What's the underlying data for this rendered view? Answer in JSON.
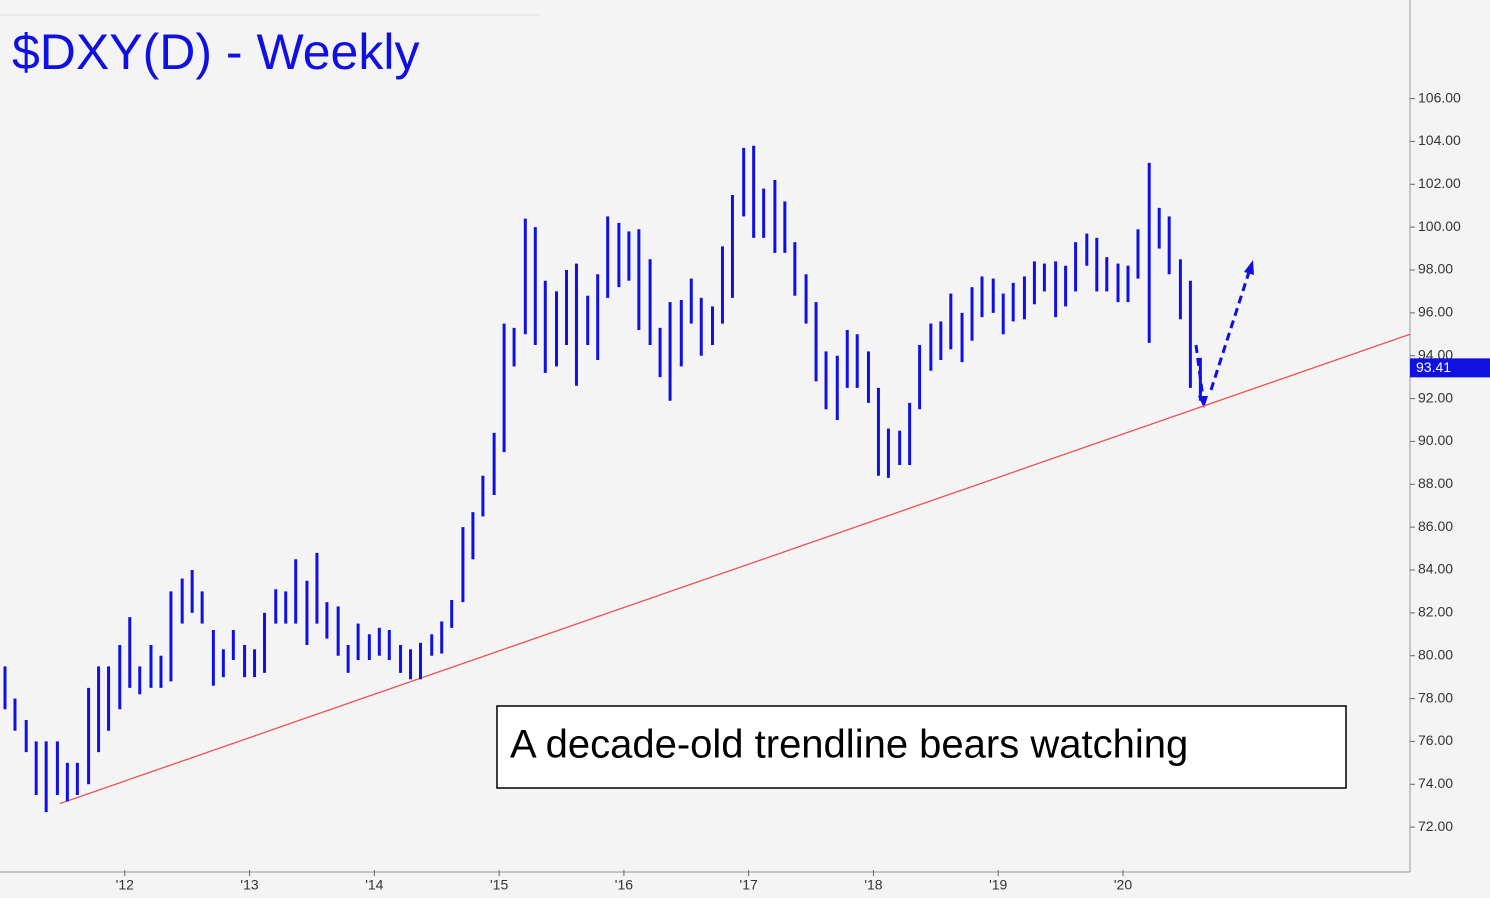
{
  "chart_data": {
    "type": "range-bar",
    "title": "$DXY(D) - Weekly",
    "annotation": "A decade-old trendline bears watching",
    "color": "#1010e0",
    "trendline_color": "#f05050",
    "last_value": 93.41,
    "x": [
      2011.04,
      2011.12,
      2011.21,
      2011.29,
      2011.37,
      2011.46,
      2011.54,
      2011.62,
      2011.71,
      2011.79,
      2011.87,
      2011.96,
      2012.04,
      2012.12,
      2012.21,
      2012.29,
      2012.37,
      2012.46,
      2012.54,
      2012.62,
      2012.71,
      2012.79,
      2012.87,
      2012.96,
      2013.04,
      2013.12,
      2013.21,
      2013.29,
      2013.37,
      2013.46,
      2013.54,
      2013.62,
      2013.71,
      2013.79,
      2013.87,
      2013.96,
      2014.04,
      2014.12,
      2014.21,
      2014.29,
      2014.37,
      2014.46,
      2014.54,
      2014.62,
      2014.71,
      2014.79,
      2014.87,
      2014.96,
      2015.04,
      2015.12,
      2015.21,
      2015.29,
      2015.37,
      2015.46,
      2015.54,
      2015.62,
      2015.71,
      2015.79,
      2015.87,
      2015.96,
      2016.04,
      2016.12,
      2016.21,
      2016.29,
      2016.37,
      2016.46,
      2016.54,
      2016.62,
      2016.71,
      2016.79,
      2016.87,
      2016.96,
      2017.04,
      2017.12,
      2017.21,
      2017.29,
      2017.37,
      2017.46,
      2017.54,
      2017.62,
      2017.71,
      2017.79,
      2017.87,
      2017.96,
      2018.04,
      2018.12,
      2018.21,
      2018.29,
      2018.37,
      2018.46,
      2018.54,
      2018.62,
      2018.71,
      2018.79,
      2018.87,
      2018.96,
      2019.04,
      2019.12,
      2019.21,
      2019.29,
      2019.37,
      2019.46,
      2019.54,
      2019.62,
      2019.71,
      2019.79,
      2019.87,
      2019.96,
      2020.04,
      2020.12,
      2020.21,
      2020.29,
      2020.37,
      2020.46,
      2020.54,
      2020.62
    ],
    "high": [
      79.5,
      78,
      77,
      76,
      76,
      76,
      75,
      75,
      78.5,
      79.5,
      79.5,
      80.5,
      81.8,
      79.5,
      80.5,
      80,
      83,
      83.6,
      84,
      83,
      81.2,
      80.3,
      81.2,
      80.5,
      80.3,
      82,
      83.1,
      83,
      84.5,
      83.5,
      84.8,
      82.5,
      82.3,
      80.5,
      81.5,
      81,
      81.3,
      81.2,
      80.5,
      80.3,
      80.6,
      81,
      81.6,
      82.6,
      86,
      86.7,
      88.4,
      90.4,
      95.5,
      95.3,
      100.4,
      100,
      97.5,
      97,
      98,
      98.3,
      96.8,
      97.8,
      100.5,
      100.2,
      99.8,
      99.9,
      98.5,
      95.3,
      96.5,
      96.6,
      97.6,
      96.7,
      96.3,
      99.1,
      101.5,
      103.7,
      103.8,
      101.8,
      102.2,
      101.2,
      99.3,
      97.8,
      96.5,
      94.2,
      94,
      95.2,
      95,
      94.2,
      92.5,
      90.6,
      90.5,
      91.8,
      94.5,
      95.5,
      95.6,
      96.9,
      96,
      97.2,
      97.7,
      97.6,
      96.9,
      97.4,
      97.7,
      98.4,
      98.3,
      98.4,
      98.2,
      99.3,
      99.7,
      99.5,
      98.6,
      98.3,
      98.2,
      99.9,
      103,
      100.9,
      100.5,
      98.5,
      97.5,
      93.9
    ],
    "low": [
      77.5,
      76.5,
      75.5,
      73.5,
      72.7,
      73.5,
      73.2,
      73.5,
      74,
      75.5,
      76.5,
      77.5,
      78.5,
      78.2,
      78.5,
      78.5,
      78.8,
      81.5,
      82,
      81.5,
      78.6,
      79,
      79.8,
      79,
      79,
      79.2,
      81.5,
      81.5,
      81.5,
      80.5,
      81.5,
      80.8,
      80,
      79.2,
      79.8,
      79.8,
      80,
      79.8,
      79.2,
      78.9,
      78.9,
      80,
      80.1,
      81.3,
      82.5,
      84.5,
      86.5,
      87.5,
      89.5,
      93.5,
      95,
      94.5,
      93.2,
      93.5,
      94.5,
      92.6,
      94.5,
      93.8,
      96.7,
      97.2,
      97.5,
      95.2,
      94.5,
      93,
      91.9,
      93.5,
      95.5,
      94,
      94.5,
      95.5,
      96.7,
      100.5,
      99.5,
      99.5,
      98.8,
      98.8,
      96.8,
      95.5,
      92.8,
      91.5,
      91,
      92.5,
      92.5,
      91.8,
      88.4,
      88.3,
      88.9,
      88.9,
      91.5,
      93.3,
      93.8,
      94.3,
      93.7,
      94.7,
      95.8,
      96,
      95,
      95.6,
      95.7,
      96.4,
      97,
      95.8,
      96.3,
      97,
      98.2,
      97,
      97,
      96.5,
      96.5,
      97.6,
      94.6,
      99,
      97.8,
      95.7,
      92.5,
      91.9
    ],
    "trendline": {
      "x": [
        2011.48,
        2022.3
      ],
      "y": [
        73.1,
        95.0
      ]
    },
    "xlim": [
      2011.0,
      2022.3
    ],
    "ylim": [
      70,
      110.6
    ],
    "xticks": [
      {
        "value": 2012,
        "label": "'12"
      },
      {
        "value": 2013,
        "label": "'13"
      },
      {
        "value": 2014,
        "label": "'14"
      },
      {
        "value": 2015,
        "label": "'15"
      },
      {
        "value": 2016,
        "label": "'16"
      },
      {
        "value": 2017,
        "label": "'17"
      },
      {
        "value": 2018,
        "label": "'18"
      },
      {
        "value": 2019,
        "label": "'19"
      },
      {
        "value": 2020,
        "label": "'20"
      }
    ],
    "yticks": [
      {
        "value": 72,
        "label": "72.00"
      },
      {
        "value": 74,
        "label": "74.00"
      },
      {
        "value": 76,
        "label": "76.00"
      },
      {
        "value": 78,
        "label": "78.00"
      },
      {
        "value": 80,
        "label": "80.00"
      },
      {
        "value": 82,
        "label": "82.00"
      },
      {
        "value": 84,
        "label": "84.00"
      },
      {
        "value": 86,
        "label": "86.00"
      },
      {
        "value": 88,
        "label": "88.00"
      },
      {
        "value": 90,
        "label": "90.00"
      },
      {
        "value": 92,
        "label": "92.00"
      },
      {
        "value": 94,
        "label": "94.00"
      },
      {
        "value": 96,
        "label": "96.00"
      },
      {
        "value": 98,
        "label": "98.00"
      },
      {
        "value": 100,
        "label": "100.00"
      },
      {
        "value": 102,
        "label": "102.00"
      },
      {
        "value": 104,
        "label": "104.00"
      },
      {
        "value": 106,
        "label": "106.00"
      }
    ]
  }
}
